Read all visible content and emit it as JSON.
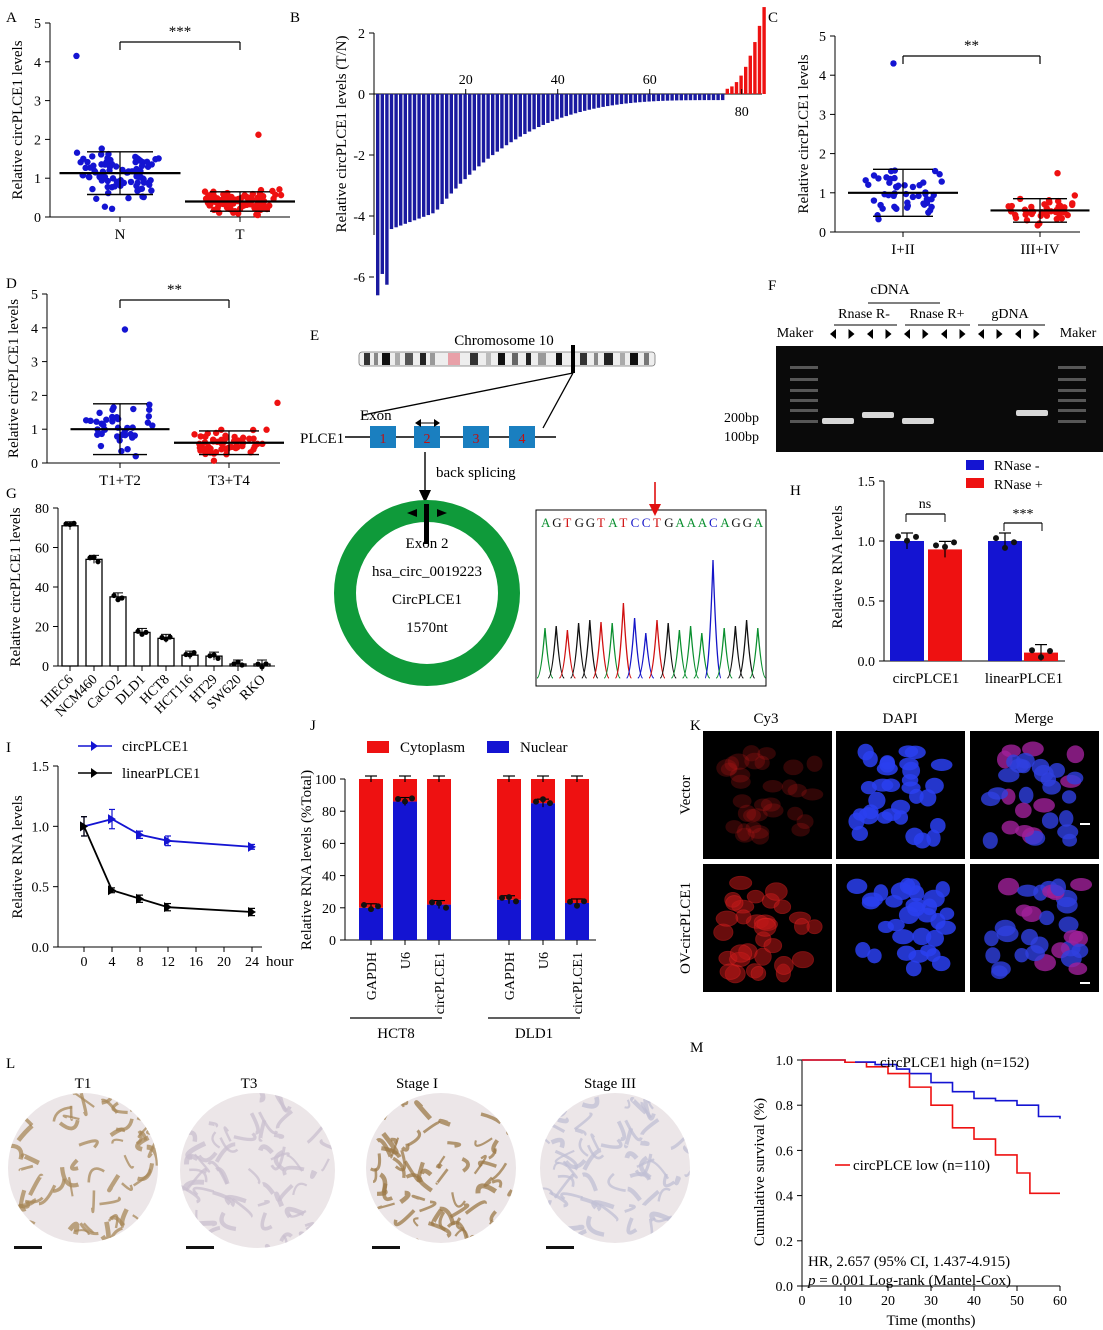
{
  "panel_letters": [
    "A",
    "B",
    "C",
    "D",
    "E",
    "F",
    "G",
    "H",
    "I",
    "J",
    "K",
    "L",
    "M"
  ],
  "colors": {
    "blue": "#1414d2",
    "red": "#ee1111",
    "navy": "#1a1aa0",
    "green": "#0f9a3a",
    "exon": "#1a7fc0"
  },
  "panelA": {
    "ylabel": "Relative circPLCE1 levels",
    "groups": [
      "N",
      "T"
    ],
    "yticks": [
      "0",
      "1",
      "2",
      "3",
      "4",
      "5"
    ],
    "sig": "***"
  },
  "panelB": {
    "ylabel": "Relative circPLCE1 levels  (T/N)",
    "xticks": [
      "20",
      "40",
      "60",
      "80"
    ],
    "yticks": [
      "2",
      "0",
      "-2",
      "-4",
      "-6"
    ]
  },
  "panelC": {
    "ylabel": "Relative circPLCE1 levels",
    "groups": [
      "I+II",
      "III+IV"
    ],
    "yticks": [
      "0",
      "1",
      "2",
      "3",
      "4",
      "5"
    ],
    "sig": "**"
  },
  "panelD": {
    "ylabel": "Relative circPLCE1 levels",
    "groups": [
      "T1+T2",
      "T3+T4"
    ],
    "yticks": [
      "0",
      "1",
      "2",
      "3",
      "4",
      "5"
    ],
    "sig": "**"
  },
  "panelE": {
    "ylabel": "Relative circPLCE1 levels",
    "yticks": [
      "0",
      "20",
      "40",
      "60",
      "80"
    ],
    "categories": [
      "HIEC6",
      "NCM460",
      "CaCO2",
      "DLD1",
      "HCT8",
      "HCT116",
      "HT29",
      "SW620",
      "RKO"
    ]
  },
  "panelF": {
    "chromosome": "Chromosome 10",
    "exon_label": "Exon",
    "gene": "PLCE1",
    "exons": [
      "1",
      "2",
      "3",
      "4"
    ],
    "splicing": "back splicing",
    "circle_lines": [
      "Exon 2",
      "hsa_circ_0019223",
      "CircPLCE1",
      "1570nt"
    ],
    "sequence": [
      {
        "c": "A",
        "col": "#0a8f2f"
      },
      {
        "c": "G",
        "col": "#111111"
      },
      {
        "c": "T",
        "col": "#d01010"
      },
      {
        "c": "G",
        "col": "#111111"
      },
      {
        "c": "G",
        "col": "#111111"
      },
      {
        "c": "T",
        "col": "#d01010"
      },
      {
        "c": "A",
        "col": "#0a8f2f"
      },
      {
        "c": "T",
        "col": "#d01010"
      },
      {
        "c": "C",
        "col": "#1515c8"
      },
      {
        "c": "C",
        "col": "#1515c8"
      },
      {
        "c": "T",
        "col": "#d01010"
      },
      {
        "c": "G",
        "col": "#111111"
      },
      {
        "c": "A",
        "col": "#0a8f2f"
      },
      {
        "c": "A",
        "col": "#0a8f2f"
      },
      {
        "c": "A",
        "col": "#0a8f2f"
      },
      {
        "c": "C",
        "col": "#1515c8"
      },
      {
        "c": "A",
        "col": "#0a8f2f"
      },
      {
        "c": "G",
        "col": "#111111"
      },
      {
        "c": "G",
        "col": "#111111"
      },
      {
        "c": "A",
        "col": "#0a8f2f"
      }
    ]
  },
  "panelG": {
    "top": "cDNA",
    "lanes": [
      "Rnase R-",
      "Rnase R+",
      "gDNA"
    ],
    "maker": "Maker",
    "sizes": [
      "200bp",
      "100bp"
    ]
  },
  "panelH": {
    "ylabel": "Relative RNA levels",
    "yticks": [
      "0.0",
      "0.5",
      "1.0",
      "1.5"
    ],
    "legend": [
      "RNase -",
      "RNase +"
    ],
    "categories": [
      "circPLCE1",
      "linearPLCE1"
    ],
    "sig": [
      "ns",
      "***"
    ],
    "chart_data": {
      "type": "bar",
      "categories": [
        "circPLCE1",
        "linearPLCE1"
      ],
      "series": [
        {
          "name": "RNase -",
          "values": [
            1.0,
            1.0
          ]
        },
        {
          "name": "RNase +",
          "values": [
            0.93,
            0.07
          ]
        }
      ],
      "ylim": [
        0,
        1.5
      ]
    }
  },
  "panelI": {
    "ylabel": "Relative RNA levels",
    "xunit": "hour",
    "xticks": [
      "0",
      "4",
      "8",
      "12",
      "16",
      "20",
      "24"
    ],
    "yticks": [
      "0.0",
      "0.5",
      "1.0",
      "1.5"
    ],
    "legend": [
      "circPLCE1",
      "linearPLCE1"
    ],
    "chart_data": {
      "type": "line",
      "x": [
        0,
        4,
        8,
        12,
        24
      ],
      "series": [
        {
          "name": "circPLCE1",
          "values": [
            1.0,
            1.06,
            0.93,
            0.88,
            0.83
          ]
        },
        {
          "name": "linearPLCE1",
          "values": [
            1.0,
            0.47,
            0.4,
            0.33,
            0.29
          ]
        }
      ],
      "ylim": [
        0,
        1.5
      ]
    }
  },
  "panelJ": {
    "ylabel": "Relative RNA levels (%Total)",
    "yticks": [
      "0",
      "20",
      "40",
      "60",
      "80",
      "100"
    ],
    "legend": [
      "Cytoplasm",
      "Nuclear"
    ],
    "bars": [
      "GAPDH",
      "U6",
      "circPLCE1",
      "GAPDH",
      "U6",
      "circPLCE1"
    ],
    "groups": [
      "HCT8",
      "DLD1"
    ],
    "chart_data": {
      "type": "bar",
      "categories": [
        "GAPDH",
        "U6",
        "circPLCE1",
        "GAPDH",
        "U6",
        "circPLCE1"
      ],
      "series": [
        {
          "name": "Nuclear",
          "values": [
            20,
            86,
            22,
            25,
            85,
            23
          ]
        },
        {
          "name": "Cytoplasm",
          "values": [
            80,
            14,
            78,
            75,
            15,
            77
          ]
        }
      ],
      "ylim": [
        0,
        100
      ]
    }
  },
  "panelK": {
    "cols": [
      "Cy3",
      "DAPI",
      "Merge"
    ],
    "rows": [
      "Vector",
      "OV-circPLCE1"
    ]
  },
  "panelL": {
    "labels": [
      "T1",
      "T3",
      "Stage I",
      "Stage III"
    ]
  },
  "panelM": {
    "ylabel": "Cumulative survival (%)",
    "xlabel": "Time (months)",
    "xticks": [
      "0",
      "10",
      "20",
      "30",
      "40",
      "50",
      "60"
    ],
    "yticks": [
      "0.0",
      "0.2",
      "0.4",
      "0.6",
      "0.8",
      "1.0"
    ],
    "high": "circPLCE1 high (n=152)",
    "low": "circPLCE low (n=110)",
    "hr": "HR, 2.657 (95% CI, 1.437-4.915)",
    "p_prefix": "p",
    "p_text": " = 0.001 Log-rank (Mantel-Cox)",
    "chart_data": {
      "type": "line",
      "series": [
        {
          "name": "circPLCE1 high (n=152)",
          "x": [
            0,
            10,
            17,
            22,
            25,
            30,
            35,
            40,
            45,
            50,
            55,
            60
          ],
          "values": [
            1.0,
            0.99,
            0.98,
            0.96,
            0.94,
            0.9,
            0.86,
            0.83,
            0.82,
            0.8,
            0.75,
            0.74
          ]
        },
        {
          "name": "circPLCE low (n=110)",
          "x": [
            0,
            10,
            15,
            20,
            25,
            30,
            35,
            40,
            45,
            50,
            53,
            60
          ],
          "values": [
            1.0,
            0.99,
            0.97,
            0.94,
            0.88,
            0.8,
            0.7,
            0.65,
            0.58,
            0.5,
            0.41,
            0.41
          ]
        }
      ],
      "xlim": [
        0,
        60
      ],
      "ylim": [
        0,
        1.0
      ]
    }
  }
}
